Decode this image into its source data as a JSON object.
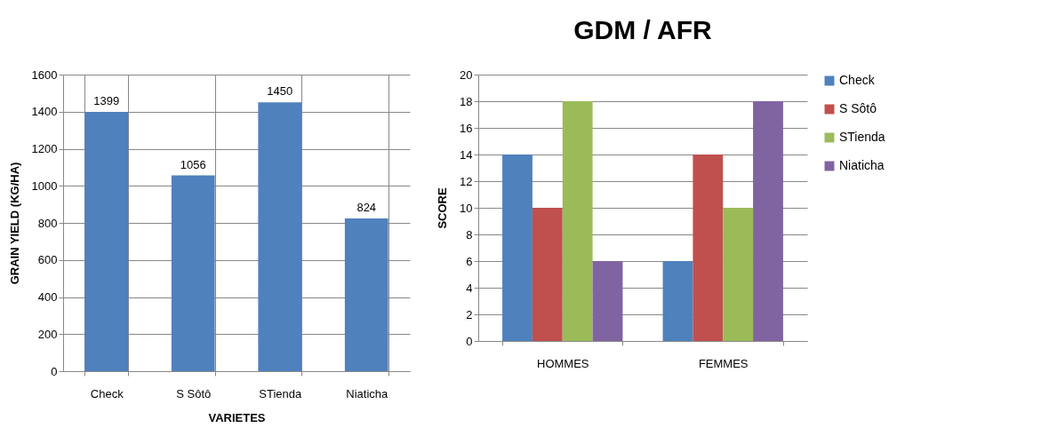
{
  "chart_data": [
    {
      "type": "bar",
      "xlabel": "VARIETES",
      "ylabel": "GRAIN YIELD (KG/HA)",
      "categories": [
        "Check",
        "S Sôtô",
        "STienda",
        "Niaticha"
      ],
      "values": [
        1399,
        1056,
        1450,
        824
      ],
      "color": "#4f81bd",
      "ylim": [
        0,
        1600
      ],
      "yticks": [
        0,
        200,
        400,
        600,
        800,
        1000,
        1200,
        1400,
        1600
      ],
      "grid": true,
      "data_labels": true
    },
    {
      "type": "bar",
      "title": "GDM / AFR",
      "ylabel": "SCORE",
      "categories": [
        "HOMMES",
        "FEMMES"
      ],
      "series": [
        {
          "name": "Check",
          "color": "#4f81bd",
          "values": [
            14,
            6
          ]
        },
        {
          "name": "S Sôtô",
          "color": "#c0504d",
          "values": [
            10,
            14
          ]
        },
        {
          "name": "STienda",
          "color": "#9bbb59",
          "values": [
            18,
            10
          ]
        },
        {
          "name": "Niaticha",
          "color": "#8064a2",
          "values": [
            6,
            18
          ]
        }
      ],
      "ylim": [
        0,
        20
      ],
      "yticks": [
        0,
        2,
        4,
        6,
        8,
        10,
        12,
        14,
        16,
        18,
        20
      ],
      "grid": "y",
      "legend": "right"
    }
  ]
}
